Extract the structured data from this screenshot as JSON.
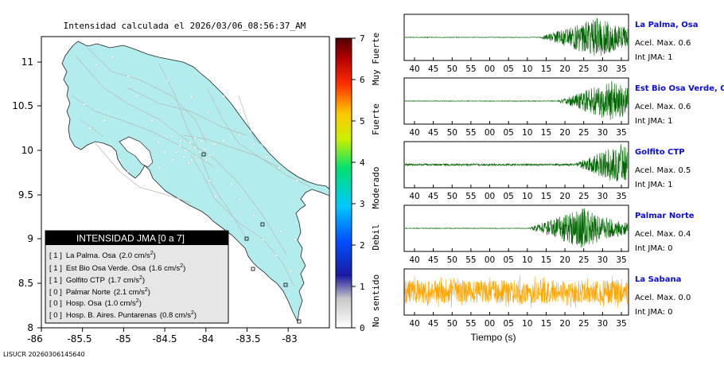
{
  "chart_data": [
    {
      "type": "map",
      "title": "Intensidad calculada el 2026/03/06_08:56:37_AM",
      "x_ticks": [
        "-86",
        "-85.5",
        "-85",
        "-84.5",
        "-84",
        "-83.5",
        "-83"
      ],
      "y_ticks": [
        "11",
        "10.5",
        "10",
        "9.5",
        "9",
        "8.5",
        "8"
      ],
      "xlim": [
        -86,
        -82.6
      ],
      "ylim": [
        8,
        11.3
      ],
      "fill_color": "#b2ecec",
      "legend": {
        "title": "INTENSIDAD JMA [0 a 7]",
        "entries": [
          {
            "intensity": "[ 1 ]",
            "station": "La Palma. Osa",
            "accel": "(2.0 cm/s",
            "unit_exp": "2",
            "close": ")"
          },
          {
            "intensity": "[ 1 ]",
            "station": "Est Bio Osa Verde. Osa",
            "accel": "(1.6 cm/s",
            "unit_exp": "2",
            "close": ")"
          },
          {
            "intensity": "[ 1 ]",
            "station": "Golfito CTP",
            "accel": "(1.7 cm/s",
            "unit_exp": "2",
            "close": ")"
          },
          {
            "intensity": "[ 0 ]",
            "station": "Palmar Norte",
            "accel": "(2.1 cm/s",
            "unit_exp": "2",
            "close": ")"
          },
          {
            "intensity": "[ 0 ]",
            "station": "Hosp. Osa",
            "accel": "(1.0 cm/s",
            "unit_exp": "2",
            "close": ")"
          },
          {
            "intensity": "[ 0 ]",
            "station": "Hosp. B. Aires. Puntarenas",
            "accel": "(0.8 cm/s",
            "unit_exp": "2",
            "close": ")"
          }
        ]
      }
    },
    {
      "type": "heatmap",
      "role": "colorbar",
      "ticks": [
        "0",
        "1",
        "2",
        "3",
        "4",
        "5",
        "6",
        "7"
      ],
      "range": [
        0,
        7
      ],
      "labels": [
        "No sentido",
        "Debil",
        "Moderado",
        "Fuerte",
        "Muy Fuerte"
      ],
      "colors": [
        "#ffffff",
        "#c8c8c8",
        "#1a1aa0",
        "#0050ff",
        "#00c8ff",
        "#00e070",
        "#c8f000",
        "#ffc800",
        "#ff3000",
        "#b40000",
        "#500000"
      ]
    },
    {
      "type": "line",
      "role": "waveforms",
      "x_tick_labels": [
        "40",
        "45",
        "50",
        "55",
        "00",
        "05",
        "10",
        "15",
        "20",
        "25",
        "30",
        "35"
      ],
      "xlabel": "Tiempo (s)",
      "series": [
        {
          "name": "La Palma, Osa",
          "accel": "Acel. Max. 0.6",
          "jma": "Int JMA: 1",
          "color": "#006400",
          "onset": 0.6,
          "peak": 0.87,
          "base": 0.015
        },
        {
          "name": "Est Bio Osa Verde, Osa",
          "accel": "Acel. Max. 0.6",
          "jma": "Int JMA: 1",
          "color": "#006400",
          "onset": 0.68,
          "peak": 0.93,
          "base": 0.015
        },
        {
          "name": "Golfito CTP",
          "accel": "Acel. Max. 0.5",
          "jma": "Int JMA: 1",
          "color": "#006400",
          "onset": 0.75,
          "peak": 0.97,
          "base": 0.05
        },
        {
          "name": "Palmar Norte",
          "accel": "Acel. Max. 0.4",
          "jma": "Int JMA: 0",
          "color": "#006400",
          "onset": 0.55,
          "peak": 0.8,
          "base": 0.015
        },
        {
          "name": "La Sabana",
          "accel": "Acel. Max. 0.0",
          "jma": "Int JMA: 0",
          "color": "#ffa500",
          "onset": 0.0,
          "peak": 0.5,
          "base": 0.55
        }
      ]
    }
  ],
  "footer": "LISUCR 20260306145640"
}
